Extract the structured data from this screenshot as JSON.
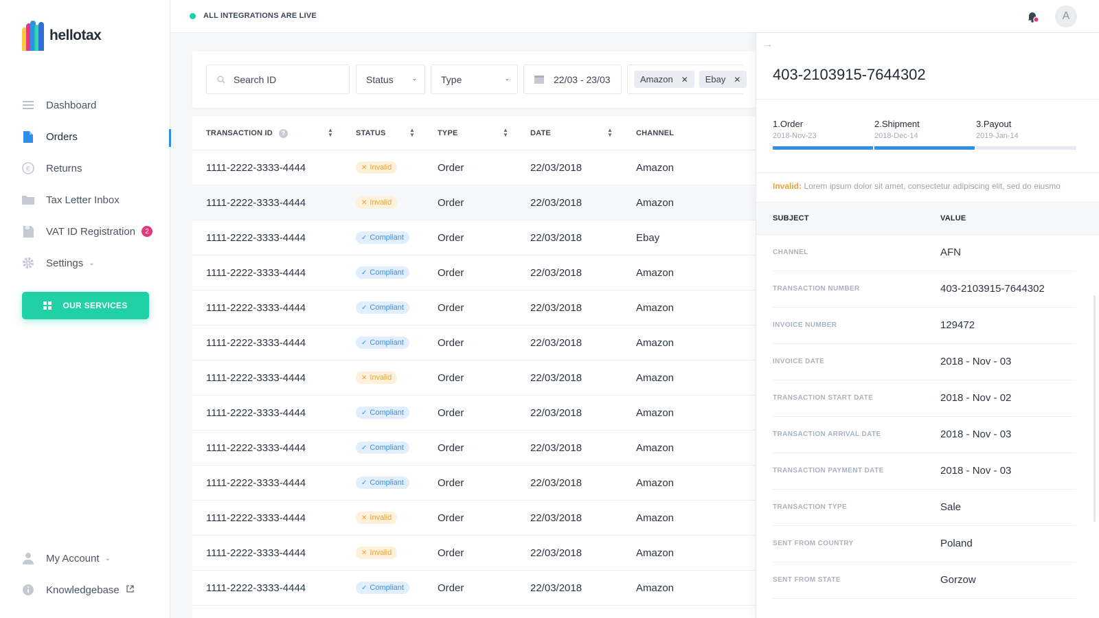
{
  "app": {
    "name": "hellotax"
  },
  "sidebar": {
    "items": [
      {
        "label": "Dashboard",
        "icon": "menu-lines-icon"
      },
      {
        "label": "Orders",
        "icon": "document-icon",
        "active": true
      },
      {
        "label": "Returns",
        "icon": "euro-icon"
      },
      {
        "label": "Tax Letter Inbox",
        "icon": "folder-icon"
      },
      {
        "label": "VAT ID Registration",
        "icon": "save-icon",
        "badge": "2"
      },
      {
        "label": "Settings",
        "icon": "gear-icon",
        "dropdown": true
      }
    ],
    "services_button": "OUR SERVICES",
    "bottom": [
      {
        "label": "My Account",
        "icon": "user-icon",
        "dropdown": true
      },
      {
        "label": "Knowledgebase",
        "icon": "info-icon",
        "external": true
      }
    ]
  },
  "topbar": {
    "status": "ALL INTEGRATIONS ARE LIVE",
    "avatar_initial": "A",
    "status_color": "#1fd1a5"
  },
  "filters": {
    "search_placeholder": "Search ID",
    "status_label": "Status",
    "type_label": "Type",
    "date_range": "22/03 - 23/03",
    "chips": [
      "Amazon",
      "Ebay"
    ]
  },
  "table": {
    "headers": {
      "transaction_id": "TRANSACTION ID",
      "status": "STATUS",
      "type": "TYPE",
      "date": "DATE",
      "channel": "CHANNEL"
    },
    "rows": [
      {
        "id": "1111-2222-3333-4444",
        "status": "Invalid",
        "type": "Order",
        "date": "22/03/2018",
        "channel": "Amazon"
      },
      {
        "id": "1111-2222-3333-4444",
        "status": "Invalid",
        "type": "Order",
        "date": "22/03/2018",
        "channel": "Amazon"
      },
      {
        "id": "1111-2222-3333-4444",
        "status": "Compliant",
        "type": "Order",
        "date": "22/03/2018",
        "channel": "Ebay"
      },
      {
        "id": "1111-2222-3333-4444",
        "status": "Compliant",
        "type": "Order",
        "date": "22/03/2018",
        "channel": "Amazon"
      },
      {
        "id": "1111-2222-3333-4444",
        "status": "Compliant",
        "type": "Order",
        "date": "22/03/2018",
        "channel": "Amazon"
      },
      {
        "id": "1111-2222-3333-4444",
        "status": "Compliant",
        "type": "Order",
        "date": "22/03/2018",
        "channel": "Amazon"
      },
      {
        "id": "1111-2222-3333-4444",
        "status": "Invalid",
        "type": "Order",
        "date": "22/03/2018",
        "channel": "Amazon"
      },
      {
        "id": "1111-2222-3333-4444",
        "status": "Compliant",
        "type": "Order",
        "date": "22/03/2018",
        "channel": "Amazon"
      },
      {
        "id": "1111-2222-3333-4444",
        "status": "Compliant",
        "type": "Order",
        "date": "22/03/2018",
        "channel": "Amazon"
      },
      {
        "id": "1111-2222-3333-4444",
        "status": "Compliant",
        "type": "Order",
        "date": "22/03/2018",
        "channel": "Amazon"
      },
      {
        "id": "1111-2222-3333-4444",
        "status": "Invalid",
        "type": "Order",
        "date": "22/03/2018",
        "channel": "Amazon"
      },
      {
        "id": "1111-2222-3333-4444",
        "status": "Invalid",
        "type": "Order",
        "date": "22/03/2018",
        "channel": "Amazon"
      },
      {
        "id": "1111-2222-3333-4444",
        "status": "Compliant",
        "type": "Order",
        "date": "22/03/2018",
        "channel": "Amazon"
      }
    ]
  },
  "detail": {
    "title": "403-2103915-7644302",
    "steps": [
      {
        "label": "1.Order",
        "date": "2018-Nov-23",
        "progress": 1.0
      },
      {
        "label": "2.Shipment",
        "date": "2018-Dec-14",
        "progress": 1.0
      },
      {
        "label": "3.Payout",
        "date": "2019-Jan-14",
        "progress": 0.0
      }
    ],
    "warning_label": "Invalid:",
    "warning_text": "Lorem ipsum dolor sit amet, consectetur adipiscing elit, sed do eiusmo",
    "col_subject": "SUBJECT",
    "col_value": "VALUE",
    "rows": [
      {
        "subject": "CHANNEL",
        "value": "AFN"
      },
      {
        "subject": "TRANSACTION NUMBER",
        "value": "403-2103915-7644302"
      },
      {
        "subject": "INVOICE NUMBER",
        "value": "129472"
      },
      {
        "subject": "INVOICE DATE",
        "value": "2018 - Nov - 03"
      },
      {
        "subject": "TRANSACTION START DATE",
        "value": "2018 - Nov - 02"
      },
      {
        "subject": "TRANSACTION ARRIVAL DATE",
        "value": "2018 - Nov - 03"
      },
      {
        "subject": "TRANSACTION PAYMENT DATE",
        "value": "2018 - Nov - 03"
      },
      {
        "subject": "TRANSACTION TYPE",
        "value": "Sale"
      },
      {
        "subject": "SENT FROM COUNTRY",
        "value": "Poland"
      },
      {
        "subject": "SENT FROM STATE",
        "value": "Gorzow"
      }
    ]
  },
  "colors": {
    "accent": "#2f8fe6",
    "services": "#1fd1a5",
    "invalid": "#e8a23a",
    "compliant": "#3a8fe0",
    "badge": "#e2397f"
  }
}
